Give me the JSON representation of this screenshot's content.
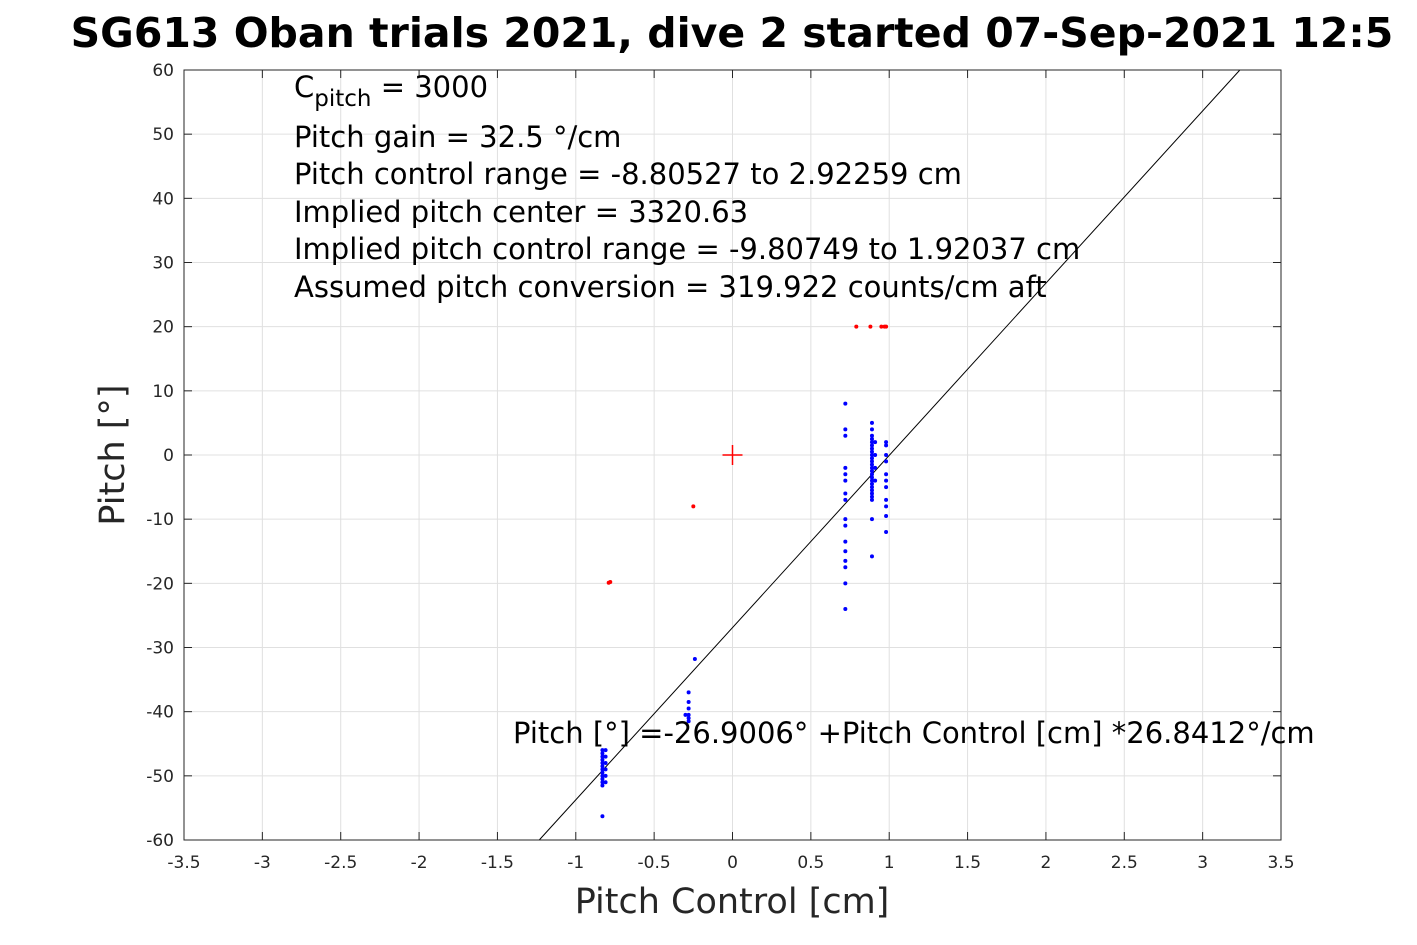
{
  "chart_data": {
    "type": "scatter",
    "title": "SG613 Oban trials 2021, dive 2 started 07-Sep-2021 12:5",
    "xlabel": "Pitch Control [cm]",
    "ylabel": "Pitch [°]",
    "xlim": [
      -3.5,
      3.5
    ],
    "ylim": [
      -60,
      60
    ],
    "xticks": [
      -3.5,
      -3,
      -2.5,
      -2,
      -1.5,
      -1,
      -0.5,
      0,
      0.5,
      1,
      1.5,
      2,
      2.5,
      3,
      3.5
    ],
    "xtick_labels": [
      "-3.5",
      "-3",
      "-2.5",
      "-2",
      "-1.5",
      "-1",
      "-0.5",
      "0",
      "0.5",
      "1",
      "1.5",
      "2",
      "2.5",
      "3",
      "3.5"
    ],
    "yticks": [
      -60,
      -50,
      -40,
      -30,
      -20,
      -10,
      0,
      10,
      20,
      30,
      40,
      50,
      60
    ],
    "ytick_labels": [
      "-60",
      "-50",
      "-40",
      "-30",
      "-20",
      "-10",
      "0",
      "10",
      "20",
      "30",
      "40",
      "50",
      "60"
    ],
    "grid": true,
    "colors": {
      "good_points": "#0000ff",
      "rejected_points": "#ff0000",
      "fit_line": "#000000",
      "grid": "#e0e0e0",
      "axes": "#262626"
    },
    "annotation_lines": [
      {
        "main": "C",
        "sub": "pitch",
        "rest": " = 3000"
      },
      {
        "main": "Pitch gain = 32.5 °/cm"
      },
      {
        "main": "Pitch control range = -8.80527 to 2.92259 cm"
      },
      {
        "main": "Implied pitch center = 3320.63"
      },
      {
        "main": "Implied pitch control range = -9.80749 to 1.92037 cm"
      },
      {
        "main": "Assumed pitch conversion = 319.922 counts/cm aft"
      }
    ],
    "fit_equation": "Pitch [°] =-26.9006° +Pitch Control [cm] *26.8412°/cm",
    "fit": {
      "intercept": -26.9006,
      "slope": 26.8412
    },
    "center_marker": {
      "x": 0,
      "y": 0
    },
    "series": [
      {
        "marker": "dot",
        "color": "#0000ff",
        "points": [
          [
            -0.83,
            -56.3
          ],
          [
            -0.83,
            -51.5
          ],
          [
            -0.83,
            -51.0
          ],
          [
            -0.83,
            -50.5
          ],
          [
            -0.83,
            -50.0
          ],
          [
            -0.83,
            -49.5
          ],
          [
            -0.83,
            -49.0
          ],
          [
            -0.83,
            -48.5
          ],
          [
            -0.83,
            -48.0
          ],
          [
            -0.83,
            -47.5
          ],
          [
            -0.83,
            -47.0
          ],
          [
            -0.83,
            -46.5
          ],
          [
            -0.83,
            -46.0
          ],
          [
            -0.81,
            -51.0
          ],
          [
            -0.81,
            -50.0
          ],
          [
            -0.81,
            -49.0
          ],
          [
            -0.81,
            -48.0
          ],
          [
            -0.81,
            -47.0
          ],
          [
            -0.81,
            -46.0
          ],
          [
            -0.28,
            -37.0
          ],
          [
            -0.28,
            -38.5
          ],
          [
            -0.28,
            -39.5
          ],
          [
            -0.28,
            -40.5
          ],
          [
            -0.28,
            -41.0
          ],
          [
            -0.28,
            -41.5
          ],
          [
            -0.3,
            -40.5
          ],
          [
            -0.24,
            -31.8
          ],
          [
            0.72,
            8.0
          ],
          [
            0.72,
            4.0
          ],
          [
            0.72,
            3.0
          ],
          [
            0.72,
            -2.0
          ],
          [
            0.72,
            -3.0
          ],
          [
            0.72,
            -4.0
          ],
          [
            0.72,
            -6.0
          ],
          [
            0.72,
            -7.0
          ],
          [
            0.72,
            -10.0
          ],
          [
            0.72,
            -11.0
          ],
          [
            0.72,
            -13.5
          ],
          [
            0.72,
            -15.0
          ],
          [
            0.72,
            -16.5
          ],
          [
            0.72,
            -17.5
          ],
          [
            0.72,
            -20.0
          ],
          [
            0.72,
            -24.0
          ],
          [
            0.89,
            5.0
          ],
          [
            0.89,
            4.0
          ],
          [
            0.89,
            3.0
          ],
          [
            0.89,
            2.5
          ],
          [
            0.89,
            2.0
          ],
          [
            0.89,
            1.5
          ],
          [
            0.89,
            1.0
          ],
          [
            0.89,
            0.5
          ],
          [
            0.89,
            0.0
          ],
          [
            0.89,
            -0.5
          ],
          [
            0.89,
            -1.0
          ],
          [
            0.89,
            -1.5
          ],
          [
            0.89,
            -2.0
          ],
          [
            0.89,
            -2.5
          ],
          [
            0.89,
            -3.0
          ],
          [
            0.89,
            -3.5
          ],
          [
            0.89,
            -4.0
          ],
          [
            0.89,
            -4.5
          ],
          [
            0.89,
            -5.0
          ],
          [
            0.89,
            -5.5
          ],
          [
            0.89,
            -6.0
          ],
          [
            0.89,
            -6.5
          ],
          [
            0.89,
            -7.0
          ],
          [
            0.89,
            -10.0
          ],
          [
            0.89,
            -15.8
          ],
          [
            0.91,
            2.0
          ],
          [
            0.91,
            0.0
          ],
          [
            0.91,
            -2.0
          ],
          [
            0.91,
            -4.0
          ],
          [
            0.98,
            2.0
          ],
          [
            0.98,
            1.5
          ],
          [
            0.98,
            0.0
          ],
          [
            0.98,
            -1.0
          ],
          [
            0.98,
            -3.0
          ],
          [
            0.98,
            -4.0
          ],
          [
            0.98,
            -5.0
          ],
          [
            0.98,
            -7.0
          ],
          [
            0.98,
            -8.0
          ],
          [
            0.98,
            -9.5
          ],
          [
            0.98,
            -12.0
          ]
        ]
      },
      {
        "marker": "dot",
        "color": "#ff0000",
        "points": [
          [
            -0.79,
            -19.9
          ],
          [
            -0.78,
            -19.8
          ],
          [
            -0.25,
            -8.0
          ],
          [
            0.79,
            20.0
          ],
          [
            0.88,
            20.0
          ],
          [
            0.95,
            20.0
          ],
          [
            0.97,
            20.0
          ],
          [
            0.98,
            20.0
          ]
        ]
      }
    ]
  }
}
